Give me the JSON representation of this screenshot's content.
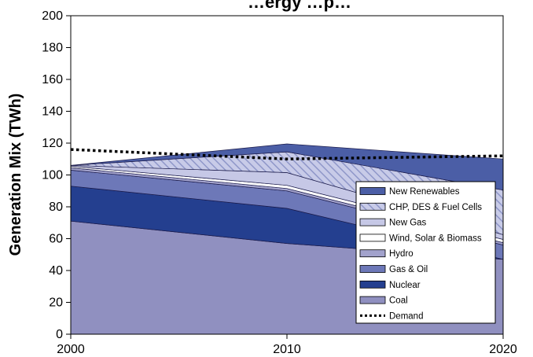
{
  "chart_data": {
    "type": "area",
    "title": "…ergy …p…",
    "xlabel": "",
    "ylabel": "Generation Mix (TWh)",
    "x": [
      2000,
      2010,
      2020
    ],
    "x_tick_labels": [
      "2000",
      "2010",
      "2020"
    ],
    "y_tick_labels": [
      "0",
      "20",
      "40",
      "60",
      "80",
      "100",
      "120",
      "140",
      "160",
      "180",
      "200"
    ],
    "xlim": [
      2000,
      2020
    ],
    "ylim": [
      0,
      200
    ],
    "y_tick_step": 20,
    "stacked": true,
    "grid": false,
    "legend_position": "bottom-right",
    "series": [
      {
        "name": "Coal",
        "values": [
          71,
          57,
          47
        ],
        "color": "#9090c0",
        "pattern": "solid"
      },
      {
        "name": "Nuclear",
        "values": [
          22,
          22,
          0
        ],
        "color": "#243f8f",
        "pattern": "solid"
      },
      {
        "name": "Gas & Oil",
        "values": [
          10,
          11,
          9
        ],
        "color": "#6d78b8",
        "pattern": "solid"
      },
      {
        "name": "Hydro",
        "values": [
          1.5,
          1.5,
          1.5
        ],
        "color": "#a2a2cc",
        "pattern": "solid"
      },
      {
        "name": "Wind, Solar & Biomass",
        "values": [
          1,
          2,
          2
        ],
        "color": "#ffffff",
        "pattern": "solid"
      },
      {
        "name": "New Gas",
        "values": [
          0.5,
          8,
          3
        ],
        "color": "#c6c8e6",
        "pattern": "solid"
      },
      {
        "name": "CHP, DES & Fuel Cells",
        "values": [
          0,
          13,
          28
        ],
        "color": "#aeb4dc",
        "pattern": "hatch"
      },
      {
        "name": "New Renewables",
        "values": [
          0,
          5,
          19.5
        ],
        "color": "#4b5ea6",
        "pattern": "solid"
      }
    ],
    "demand": {
      "name": "Demand",
      "values": [
        116,
        110,
        112
      ],
      "style": "dotted"
    }
  }
}
